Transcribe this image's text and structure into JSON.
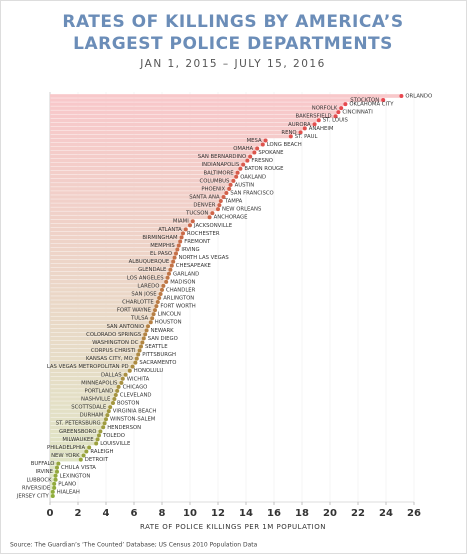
{
  "chart_data": {
    "type": "lollipop",
    "title": [
      "RATES OF KILLINGS BY AMERICA’S",
      "LARGEST POLICE DEPARTMENTS"
    ],
    "subtitle": "JAN 1, 2015 – JULY 15, 2016",
    "x_label": "RATE OF POLICE KILLINGS PER 1M POPULATION",
    "source": "Source: The Guardian’s ‘The Counted’ Database; US Census 2010 Population Data",
    "color_start": "#e8474f",
    "color_end": "#8fae3c",
    "xlim": [
      0,
      26
    ],
    "xticks": [
      0,
      2,
      4,
      6,
      8,
      10,
      12,
      14,
      16,
      18,
      20,
      22,
      24,
      26
    ],
    "grid": true,
    "categories": [
      "ORLANDO",
      "STOCKTON",
      "OKLAHOMA CITY",
      "NORFOLK",
      "CINCINNATI",
      "BAKERSFIELD",
      "ST. LOUIS",
      "AURORA",
      "ANAHEIM",
      "RENO",
      "ST. PAUL",
      "MESA",
      "LONG BEACH",
      "OMAHA",
      "SPOKANE",
      "SAN BERNARDINO",
      "FRESNO",
      "INDIANAPOLIS",
      "BATON ROUGE",
      "BALTIMORE",
      "OAKLAND",
      "COLUMBUS",
      "AUSTIN",
      "PHOENIX",
      "SAN FRANCISCO",
      "SANTA ANA",
      "TAMPA",
      "DENVER",
      "NEW ORLEANS",
      "TUCSON",
      "ANCHORAGE",
      "MIAMI",
      "JACKSONVILLE",
      "ATLANTA",
      "ROCHESTER",
      "BIRMINGHAM",
      "FREMONT",
      "MEMPHIS",
      "IRVING",
      "EL PASO",
      "NORTH LAS VEGAS",
      "ALBUQUERQUE",
      "CHESAPEAKE",
      "GLENDALE",
      "GARLAND",
      "LOS ANGELES",
      "MADISON",
      "LAREDO",
      "CHANDLER",
      "SAN JOSE",
      "ARLINGTON",
      "CHARLOTTE",
      "FORT WORTH",
      "FORT WAYNE",
      "LINCOLN",
      "TULSA",
      "HOUSTON",
      "SAN ANTONIO",
      "NEWARK",
      "COLORADO SPRINGS",
      "SAN DIEGO",
      "WASHINGTON DC",
      "SEATTLE",
      "CORPUS CHRISTI",
      "PITTSBURGH",
      "KANSAS CITY, MO",
      "SACRAMENTO",
      "LAS VEGAS METROPOLITAN PD",
      "HONOLULU",
      "DALLAS",
      "WICHITA",
      "MINNEAPOLIS",
      "CHICAGO",
      "PORTLAND",
      "CLEVELAND",
      "NASHVILLE",
      "BOSTON",
      "SCOTTSDALE",
      "VIRGINIA BEACH",
      "DURHAM",
      "WINSTON-SALEM",
      "ST. PETERSBURG",
      "HENDERSON",
      "GREENSBORO",
      "TOLEDO",
      "MILWAUKEE",
      "LOUISVILLE",
      "PHILADELPHIA",
      "RALEIGH",
      "NEW YORK",
      "DETROIT",
      "BUFFALO",
      "CHULA VISTA",
      "IRVINE",
      "LEXINGTON",
      "LUBBOCK",
      "PLANO",
      "RIVERSIDE",
      "HIALEAH",
      "JERSEY CITY"
    ],
    "values": [
      25.1,
      23.8,
      21.1,
      20.8,
      20.6,
      20.4,
      19.2,
      18.9,
      18.2,
      17.9,
      17.2,
      15.4,
      15.2,
      14.8,
      14.6,
      14.3,
      14.1,
      13.8,
      13.6,
      13.4,
      13.3,
      13.1,
      12.9,
      12.8,
      12.6,
      12.4,
      12.2,
      12.1,
      12.0,
      11.6,
      11.4,
      10.2,
      10.0,
      9.7,
      9.5,
      9.4,
      9.3,
      9.2,
      9.1,
      9.0,
      8.9,
      8.8,
      8.7,
      8.6,
      8.5,
      8.4,
      8.3,
      8.1,
      8.0,
      7.9,
      7.8,
      7.7,
      7.6,
      7.5,
      7.4,
      7.3,
      7.2,
      7.0,
      6.9,
      6.8,
      6.7,
      6.6,
      6.5,
      6.4,
      6.3,
      6.2,
      6.1,
      5.9,
      5.7,
      5.4,
      5.2,
      5.1,
      4.9,
      4.8,
      4.7,
      4.6,
      4.5,
      4.3,
      4.2,
      4.1,
      4.0,
      3.9,
      3.8,
      3.6,
      3.5,
      3.4,
      3.3,
      2.8,
      2.6,
      2.4,
      2.2,
      0.6,
      0.5,
      0.5,
      0.4,
      0.4,
      0.3,
      0.3,
      0.2,
      0.2
    ]
  }
}
